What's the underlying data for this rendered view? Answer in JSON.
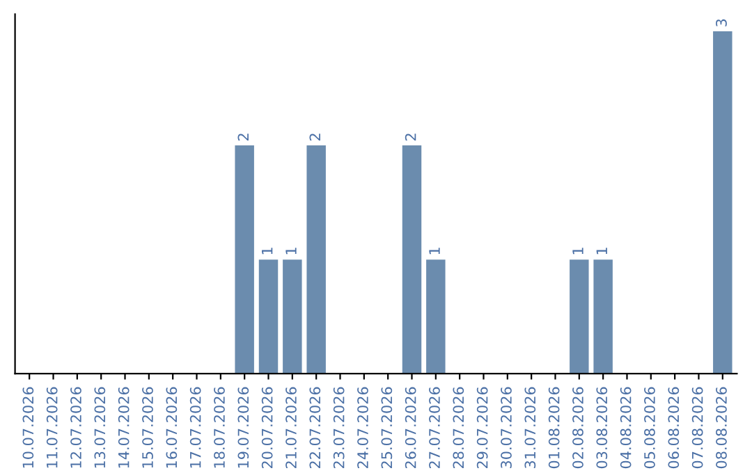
{
  "chart_data": {
    "type": "bar",
    "categories": [
      "10.07.2026",
      "11.07.2026",
      "12.07.2026",
      "13.07.2026",
      "14.07.2026",
      "15.07.2026",
      "16.07.2026",
      "17.07.2026",
      "18.07.2026",
      "19.07.2026",
      "20.07.2026",
      "21.07.2026",
      "22.07.2026",
      "23.07.2026",
      "24.07.2026",
      "25.07.2026",
      "26.07.2026",
      "27.07.2026",
      "28.07.2026",
      "29.07.2026",
      "30.07.2026",
      "31.07.2026",
      "01.08.2026",
      "02.08.2026",
      "03.08.2026",
      "04.08.2026",
      "05.08.2026",
      "06.08.2026",
      "07.08.2026",
      "08.08.2026"
    ],
    "values": [
      0,
      0,
      0,
      0,
      0,
      0,
      0,
      0,
      0,
      2,
      1,
      1,
      2,
      0,
      0,
      0,
      2,
      1,
      0,
      0,
      0,
      0,
      0,
      1,
      1,
      0,
      0,
      0,
      0,
      3
    ],
    "value_labels": [
      null,
      null,
      null,
      null,
      null,
      null,
      null,
      null,
      null,
      "2",
      "1",
      "1",
      "2",
      null,
      null,
      null,
      "2",
      "1",
      null,
      null,
      null,
      null,
      null,
      "1",
      "1",
      null,
      null,
      null,
      null,
      "3"
    ],
    "color": "#6b8cae",
    "tick_labels": "x",
    "grid": false,
    "legend": false
  }
}
